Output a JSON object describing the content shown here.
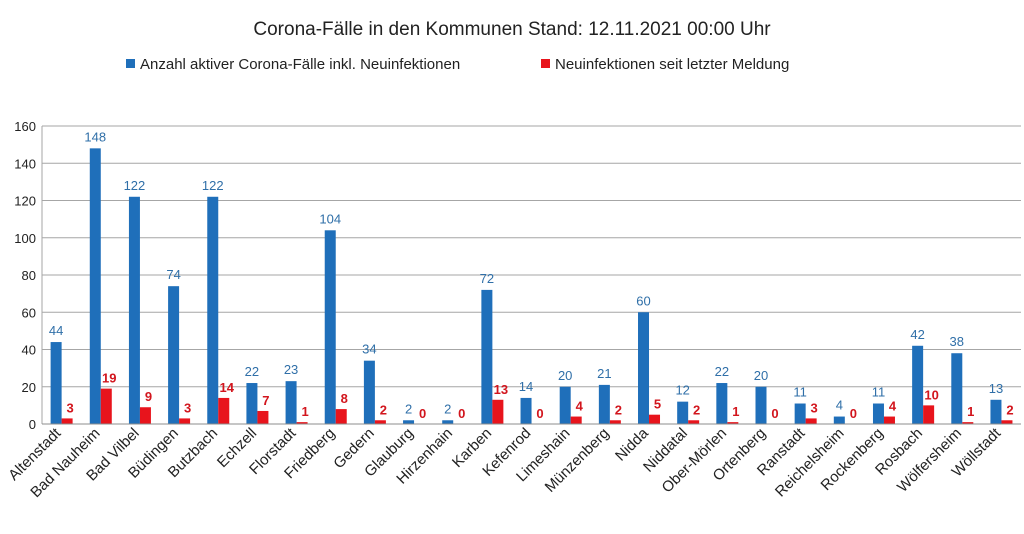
{
  "chart_data": {
    "type": "bar",
    "title": "Corona-Fälle in den Kommunen Stand: 12.11.2021 00:00 Uhr",
    "categories": [
      "Altenstadt",
      "Bad Nauheim",
      "Bad Vilbel",
      "Büdingen",
      "Butzbach",
      "Echzell",
      "Florstadt",
      "Friedberg",
      "Gedern",
      "Glauburg",
      "Hirzenhain",
      "Karben",
      "Kefenrod",
      "Limeshain",
      "Münzenberg",
      "Nidda",
      "Niddatal",
      "Ober-Mörlen",
      "Ortenberg",
      "Ranstadt",
      "Reichelsheim",
      "Rockenberg",
      "Rosbach",
      "Wölfersheim",
      "Wöllstadt"
    ],
    "series": [
      {
        "name": "Anzahl aktiver Corona-Fälle inkl. Neuinfektionen",
        "color": "#1f6fba",
        "values": [
          44,
          148,
          122,
          74,
          122,
          22,
          23,
          104,
          34,
          2,
          2,
          72,
          14,
          20,
          21,
          60,
          12,
          22,
          20,
          11,
          4,
          11,
          42,
          38,
          13
        ]
      },
      {
        "name": "Neuinfektionen seit letzter Meldung",
        "color": "#e8141c",
        "values": [
          3,
          19,
          9,
          3,
          14,
          7,
          1,
          8,
          2,
          0,
          0,
          13,
          0,
          4,
          2,
          5,
          2,
          1,
          0,
          3,
          0,
          4,
          10,
          1,
          2
        ]
      }
    ],
    "yticks": [
      0,
      20,
      40,
      60,
      80,
      100,
      120,
      140,
      160
    ],
    "ylim": [
      0,
      160
    ],
    "grid": true,
    "legend_position": "top"
  }
}
